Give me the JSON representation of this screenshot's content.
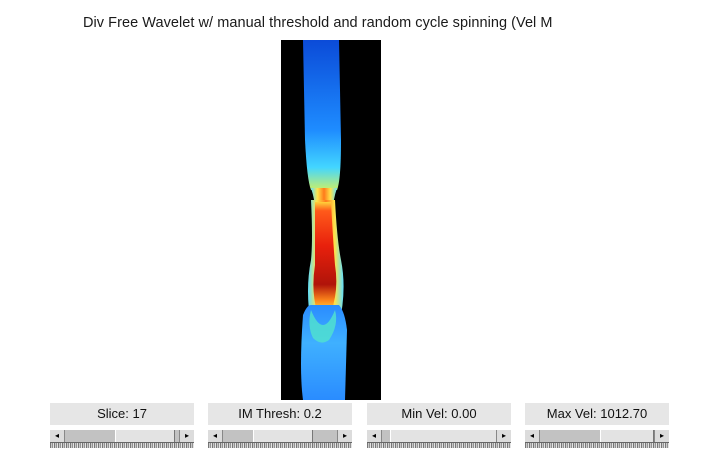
{
  "title": "Div Free Wavelet w/ manual threshold and random cycle spinning (Vel M",
  "controls": [
    {
      "label": "Slice: 17",
      "thumb_position": 0.5
    },
    {
      "label": "IM Thresh: 0.2",
      "thumb_position": 0.35
    },
    {
      "label": "Min Vel: 0.00",
      "thumb_position": 0.1
    },
    {
      "label": "Max Vel: 1012.70",
      "thumb_position": 0.6
    }
  ],
  "colors": {
    "background": "#000000",
    "low": "#1a5bff",
    "high": "#c8140a"
  },
  "icons": {
    "left_arrow": "left-arrow-icon",
    "right_arrow": "right-arrow-icon"
  }
}
